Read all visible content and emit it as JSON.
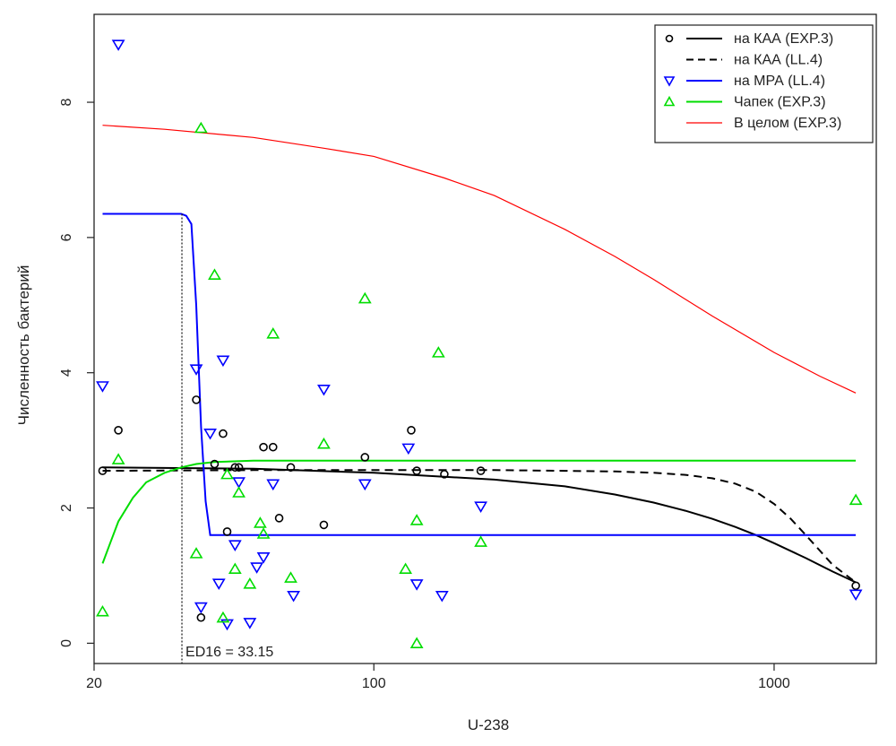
{
  "chart_data": {
    "type": "scatter",
    "xlabel": "U-238",
    "ylabel": "Численность бактерий",
    "x_scale": "log",
    "xlim": [
      20,
      1800
    ],
    "ylim": [
      -0.3,
      9.3
    ],
    "x_ticks": [
      20,
      100,
      1000
    ],
    "y_ticks": [
      0,
      2,
      4,
      6,
      8
    ],
    "grid": false,
    "legend_position": "top-right",
    "annotation": {
      "text": "ED16 = 33.15",
      "x": 33.15
    },
    "legend": [
      {
        "label": "на КАА (EXP.3)",
        "marker": "circle",
        "line": "solid",
        "color": "#000000"
      },
      {
        "label": "на КАА (LL.4)",
        "marker": "none",
        "line": "dashed",
        "color": "#000000"
      },
      {
        "label": "на МРА (LL.4)",
        "marker": "triangle-down",
        "line": "solid",
        "color": "#0000ff"
      },
      {
        "label": "Чапек (EXP.3)",
        "marker": "triangle-up",
        "line": "solid",
        "color": "#00dd00"
      },
      {
        "label": "В целом (EXP.3)",
        "marker": "none",
        "line": "solid",
        "color": "#ff0000"
      }
    ],
    "points": [
      {
        "series": "KAA",
        "marker": "circle",
        "color": "#000000",
        "x": [
          21,
          23,
          36,
          37,
          40,
          42,
          43,
          45,
          46,
          53,
          56,
          58,
          62,
          75,
          95,
          124,
          128,
          150,
          185,
          1600
        ],
        "y": [
          2.55,
          3.15,
          3.6,
          0.38,
          2.65,
          3.1,
          1.65,
          2.6,
          2.6,
          2.9,
          2.9,
          1.85,
          2.6,
          1.75,
          2.75,
          3.15,
          2.55,
          2.5,
          2.55,
          0.85
        ]
      },
      {
        "series": "MPA",
        "marker": "triangle-down",
        "color": "#0000ff",
        "x": [
          21,
          23,
          36,
          37,
          39,
          41,
          42,
          43,
          45,
          46,
          49,
          51,
          53,
          56,
          63,
          75,
          95,
          122,
          128,
          148,
          185,
          1600
        ],
        "y": [
          3.8,
          8.85,
          4.05,
          0.53,
          3.1,
          0.88,
          4.18,
          0.28,
          1.45,
          2.38,
          0.3,
          1.12,
          1.27,
          2.35,
          0.7,
          3.75,
          2.35,
          2.88,
          0.87,
          0.7,
          2.02,
          0.72
        ],
        "y_fix_note": ""
      },
      {
        "series": "Chapek",
        "marker": "triangle-up",
        "color": "#00dd00",
        "x": [
          21,
          23,
          36,
          37,
          40,
          42,
          43,
          45,
          46,
          49,
          52,
          53,
          56,
          62,
          75,
          95,
          120,
          128,
          128,
          145,
          185,
          1600
        ],
        "y": [
          0.47,
          2.72,
          1.33,
          7.62,
          5.45,
          0.38,
          2.5,
          1.1,
          2.23,
          0.88,
          1.78,
          1.62,
          4.58,
          0.97,
          2.95,
          5.1,
          1.1,
          1.82,
          0.0,
          4.3,
          1.5,
          2.12
        ]
      }
    ],
    "curves": [
      {
        "series": "В целом (EXP.3)",
        "color": "#ff0000",
        "dash": false,
        "x": [
          21,
          30,
          50,
          75,
          100,
          150,
          200,
          300,
          400,
          500,
          700,
          1000,
          1300,
          1600
        ],
        "y": [
          7.66,
          7.6,
          7.48,
          7.32,
          7.2,
          6.88,
          6.62,
          6.12,
          5.72,
          5.38,
          4.84,
          4.3,
          3.95,
          3.7
        ]
      },
      {
        "series": "на КАА (EXP.3)",
        "color": "#000000",
        "dash": false,
        "x": [
          21,
          50,
          100,
          200,
          300,
          400,
          500,
          600,
          700,
          800,
          900,
          1000,
          1200,
          1400,
          1600
        ],
        "y": [
          2.6,
          2.58,
          2.52,
          2.42,
          2.32,
          2.2,
          2.08,
          1.96,
          1.84,
          1.72,
          1.6,
          1.48,
          1.26,
          1.06,
          0.9
        ]
      },
      {
        "series": "на КАА (LL.4)",
        "color": "#000000",
        "dash": true,
        "x": [
          21,
          50,
          100,
          200,
          300,
          400,
          500,
          600,
          700,
          800,
          900,
          1000,
          1100,
          1200,
          1400,
          1600
        ],
        "y": [
          2.55,
          2.56,
          2.56,
          2.56,
          2.55,
          2.54,
          2.52,
          2.49,
          2.44,
          2.36,
          2.24,
          2.06,
          1.84,
          1.6,
          1.16,
          0.9
        ]
      },
      {
        "series": "на МРА (LL.4)",
        "color": "#0000ff",
        "dash": false,
        "x": [
          21,
          33,
          34,
          35,
          36,
          37,
          38,
          39,
          1600
        ],
        "y": [
          6.35,
          6.35,
          6.32,
          6.2,
          5.0,
          3.2,
          2.1,
          1.6,
          1.6
        ]
      },
      {
        "series": "Чапек (EXP.3)",
        "color": "#00dd00",
        "dash": false,
        "x": [
          21,
          22,
          23,
          25,
          27,
          30,
          33,
          36,
          40,
          50,
          60,
          1600
        ],
        "y": [
          1.18,
          1.5,
          1.8,
          2.15,
          2.38,
          2.52,
          2.6,
          2.65,
          2.68,
          2.7,
          2.7,
          2.7
        ]
      }
    ]
  }
}
